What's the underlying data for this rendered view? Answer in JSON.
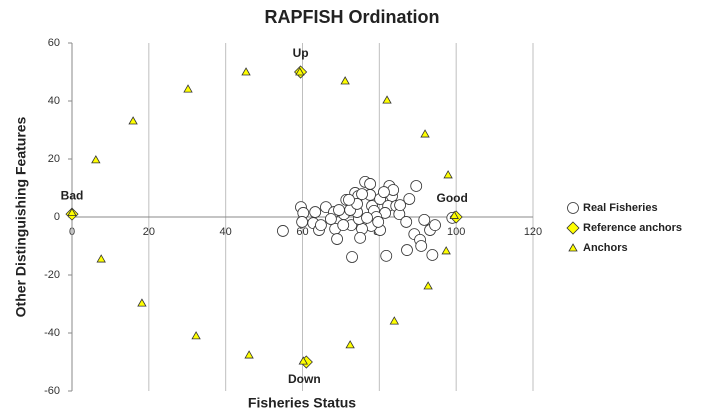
{
  "chart_data": {
    "type": "scatter",
    "title": "RAPFISH Ordination",
    "x_label": "Fisheries Status",
    "y_label": "Other Distinguishing Features",
    "xlim": [
      0,
      120
    ],
    "ylim": [
      -60,
      60
    ],
    "xticks": [
      0,
      20,
      40,
      60,
      80,
      100,
      120
    ],
    "yticks": [
      -60,
      -40,
      -20,
      0,
      20,
      40,
      60
    ],
    "grid": "x",
    "legend": "right",
    "annotations": [
      "Bad",
      "Up",
      "Good",
      "Down"
    ],
    "series": [
      {
        "name": "Real Fisheries",
        "color": "#ffffff",
        "marker": "circle",
        "x": [
          59.6,
          60.2,
          59.9,
          63.3,
          62.8,
          66.1,
          68.2,
          64.3,
          68.5,
          64.8,
          67.4,
          70.8,
          69.0,
          72.7,
          72.9,
          70.6,
          73.7,
          74.5,
          76.3,
          77.6,
          78.1,
          78.6,
          80.2,
          82.6,
          83.3,
          82.3,
          84.4,
          85.2,
          81.5,
          79.2,
          80.2,
          77.9,
          75.5,
          74.7,
          74.2,
          72.4,
          71.4,
          75.5,
          77.6,
          83.6,
          85.4,
          87.8,
          89.6,
          87.0,
          89.1,
          90.6,
          90.9,
          87.2,
          81.8,
          93.2,
          93.8,
          91.7,
          94.5,
          99.0,
          54.9,
          69.5,
          76.8,
          79.7,
          74.2,
          81.2,
          75.0,
          72.1
        ],
        "values": [
          3.4,
          1.4,
          -1.7,
          1.7,
          -2.1,
          3.4,
          1.7,
          -4.5,
          -4.1,
          -2.8,
          -0.7,
          1.0,
          -7.6,
          -2.8,
          -13.8,
          -2.8,
          8.3,
          7.2,
          12.1,
          7.6,
          3.8,
          2.1,
          6.2,
          10.7,
          7.2,
          3.8,
          3.8,
          1.0,
          1.4,
          0,
          -4.5,
          -3.1,
          -4.1,
          -0.7,
          1.7,
          2.4,
          5.9,
          7.9,
          11.4,
          9.3,
          4.1,
          6.2,
          10.7,
          -1.7,
          -5.9,
          -7.9,
          -10.0,
          -11.4,
          -13.4,
          -4.5,
          -13.1,
          -1.0,
          -2.8,
          -0.3,
          -4.8,
          2.4,
          -0.3,
          -1.7,
          4.5,
          8.6,
          -7.2,
          5.9
        ]
      },
      {
        "name": "Reference anchors",
        "color": "#ffff00",
        "marker": "diamond",
        "x": [
          0,
          59.5,
          100,
          61
        ],
        "values": [
          1,
          50,
          0,
          -50
        ]
      },
      {
        "name": "Anchors",
        "color": "#ffff00",
        "marker": "triangle",
        "x": [
          0,
          6.2,
          15.9,
          30.2,
          45.3,
          59.3,
          71.1,
          82.0,
          91.9,
          97.9,
          99.5,
          97.4,
          92.7,
          83.9,
          72.4,
          60.2,
          46.1,
          32.3,
          18.2,
          7.6
        ],
        "values": [
          1.5,
          19.7,
          33.1,
          44.1,
          50,
          50,
          46.9,
          40.3,
          28.6,
          14.5,
          0.5,
          -11.7,
          -23.8,
          -35.9,
          -44.1,
          -49.7,
          -47.6,
          -41,
          -29.7,
          -14.5
        ]
      }
    ]
  }
}
